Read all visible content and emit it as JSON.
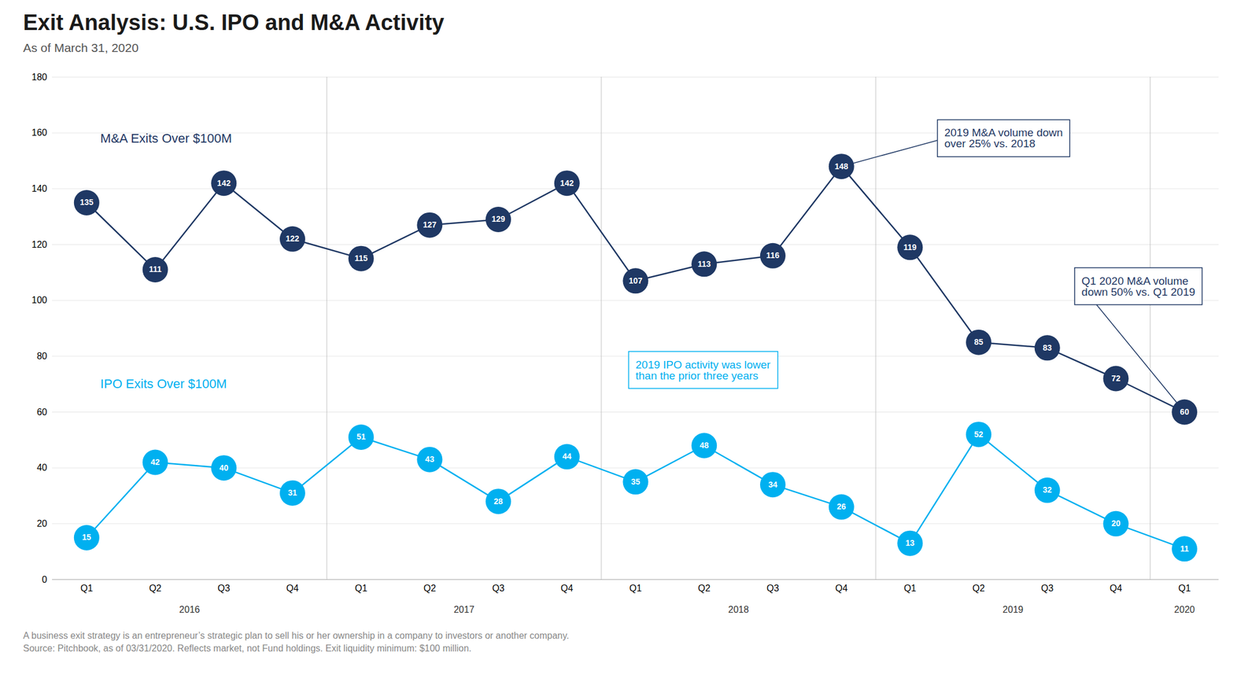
{
  "chart_data": {
    "type": "line",
    "title": "Exit Analysis: U.S. IPO and M&A Activity",
    "subtitle": "As of March 31, 2020",
    "categories": [
      "Q1",
      "Q2",
      "Q3",
      "Q4",
      "Q1",
      "Q2",
      "Q3",
      "Q4",
      "Q1",
      "Q2",
      "Q3",
      "Q4",
      "Q1",
      "Q2",
      "Q3",
      "Q4",
      "Q1"
    ],
    "category_groups": [
      "2016",
      "2016",
      "2016",
      "2016",
      "2017",
      "2017",
      "2017",
      "2017",
      "2018",
      "2018",
      "2018",
      "2018",
      "2019",
      "2019",
      "2019",
      "2019",
      "2020"
    ],
    "series": [
      {
        "name": "M&A Exits Over $100M",
        "color": "#1f3864",
        "values": [
          135,
          111,
          142,
          122,
          115,
          127,
          129,
          142,
          107,
          113,
          116,
          148,
          119,
          85,
          83,
          72,
          60
        ]
      },
      {
        "name": "IPO Exits Over $100M",
        "color": "#00b0f0",
        "values": [
          15,
          42,
          40,
          31,
          51,
          43,
          28,
          44,
          35,
          48,
          34,
          26,
          13,
          52,
          32,
          20,
          11
        ]
      }
    ],
    "ylim": [
      0,
      180
    ],
    "yticks": [
      0,
      20,
      40,
      60,
      80,
      100,
      120,
      140,
      160,
      180
    ],
    "grid": true,
    "data_labels": true,
    "marker": "circle",
    "annotations": [
      {
        "text": "2019 M&A volume down\nover 25% vs. 2018",
        "color": "#1f3864"
      },
      {
        "text": "Q1 2020 M&A volume\ndown 50% vs. Q1 2019",
        "color": "#1f3864"
      },
      {
        "text": "2019 IPO activity was lower\nthan the prior three years",
        "color": "#00b0f0"
      }
    ],
    "notes": [
      "A business exit strategy is an entrepreneur’s strategic plan to sell his or her ownership in a company to investors or another company.",
      "Source: Pitchbook, as of 03/31/2020. Reflects market, not Fund holdings. Exit liquidity minimum: $100 million."
    ]
  }
}
